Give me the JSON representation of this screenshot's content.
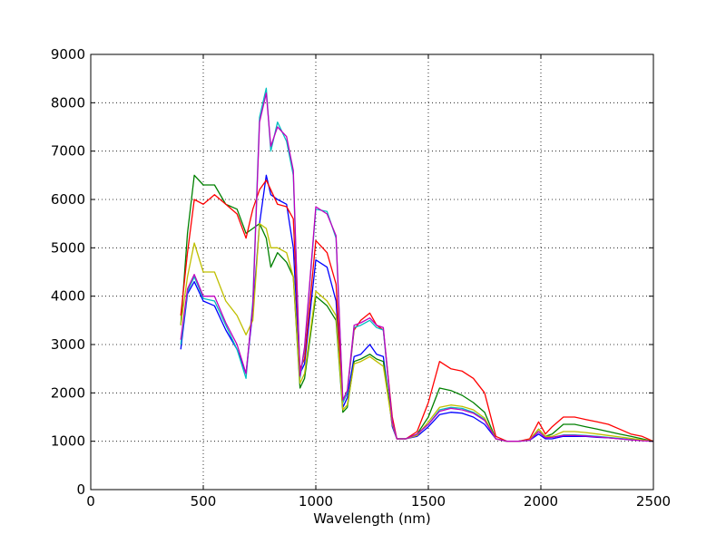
{
  "chart_data": {
    "type": "line",
    "title": "",
    "xlabel": "Wavelength (nm)",
    "ylabel": "",
    "xlim": [
      0,
      2500
    ],
    "ylim": [
      0,
      9000
    ],
    "xticks": [
      "0",
      "500",
      "1000",
      "1500",
      "2000",
      "2500"
    ],
    "yticks": [
      "0",
      "1000",
      "2000",
      "3000",
      "4000",
      "5000",
      "6000",
      "7000",
      "8000",
      "9000"
    ],
    "grid": true,
    "legend": "none",
    "x": [
      400,
      430,
      460,
      500,
      550,
      600,
      650,
      690,
      720,
      750,
      780,
      800,
      830,
      870,
      900,
      930,
      950,
      1000,
      1050,
      1090,
      1120,
      1140,
      1170,
      1200,
      1240,
      1270,
      1300,
      1340,
      1360,
      1400,
      1450,
      1500,
      1550,
      1600,
      1650,
      1700,
      1750,
      1800,
      1850,
      1900,
      1950,
      1990,
      2020,
      2050,
      2100,
      2150,
      2200,
      2250,
      2300,
      2350,
      2400,
      2450,
      2500
    ],
    "series": [
      {
        "color": "#0000ff",
        "values": [
          2900,
          4050,
          4300,
          3900,
          3800,
          3300,
          2900,
          2400,
          3700,
          5500,
          6500,
          6100,
          6000,
          5900,
          5000,
          2400,
          2600,
          4750,
          4600,
          3900,
          1700,
          1900,
          2750,
          2800,
          3000,
          2800,
          2750,
          1300,
          1050,
          1050,
          1100,
          1300,
          1550,
          1600,
          1580,
          1500,
          1350,
          1050,
          1000,
          1000,
          1020,
          1150,
          1050,
          1050,
          1100,
          1100,
          1100,
          1080,
          1070,
          1050,
          1030,
          1020,
          1000
        ]
      },
      {
        "color": "#008000",
        "values": [
          3400,
          5300,
          6500,
          6300,
          6300,
          5900,
          5800,
          5300,
          5400,
          5500,
          5200,
          4600,
          4900,
          4700,
          4400,
          2100,
          2300,
          4000,
          3800,
          3500,
          1600,
          1700,
          2650,
          2700,
          2800,
          2700,
          2650,
          1400,
          1050,
          1050,
          1150,
          1500,
          2100,
          2050,
          1950,
          1800,
          1600,
          1050,
          1000,
          1000,
          1030,
          1250,
          1100,
          1150,
          1350,
          1350,
          1300,
          1250,
          1200,
          1150,
          1100,
          1050,
          1000
        ]
      },
      {
        "color": "#ff0000",
        "values": [
          3600,
          4900,
          6000,
          5900,
          6100,
          5900,
          5700,
          5200,
          5800,
          6200,
          6400,
          6200,
          5900,
          5850,
          5600,
          2500,
          2700,
          5150,
          4900,
          4250,
          1800,
          2000,
          3300,
          3500,
          3650,
          3400,
          3300,
          1500,
          1050,
          1050,
          1200,
          1800,
          2650,
          2500,
          2450,
          2300,
          2000,
          1100,
          1000,
          1000,
          1050,
          1400,
          1150,
          1300,
          1500,
          1500,
          1450,
          1400,
          1350,
          1250,
          1150,
          1100,
          1000
        ]
      },
      {
        "color": "#00bfbf",
        "values": [
          3000,
          4100,
          4400,
          3950,
          3900,
          3400,
          2900,
          2300,
          3900,
          7700,
          8300,
          7000,
          7600,
          7200,
          6500,
          2300,
          2900,
          5800,
          5750,
          5200,
          1800,
          2000,
          3350,
          3400,
          3500,
          3350,
          3300,
          1400,
          1050,
          1050,
          1150,
          1350,
          1650,
          1700,
          1680,
          1600,
          1450,
          1050,
          1000,
          1000,
          1020,
          1200,
          1080,
          1080,
          1130,
          1130,
          1120,
          1100,
          1080,
          1060,
          1040,
          1020,
          1000
        ]
      },
      {
        "color": "#bfbf00",
        "values": [
          3400,
          4400,
          5100,
          4500,
          4500,
          3900,
          3600,
          3200,
          3500,
          5500,
          5400,
          5000,
          5000,
          4900,
          4400,
          2200,
          2400,
          4100,
          3900,
          3600,
          1650,
          1750,
          2600,
          2650,
          2750,
          2650,
          2550,
          1350,
          1050,
          1050,
          1120,
          1400,
          1700,
          1750,
          1720,
          1650,
          1480,
          1050,
          1000,
          1000,
          1030,
          1250,
          1100,
          1100,
          1200,
          1200,
          1180,
          1150,
          1120,
          1090,
          1060,
          1030,
          1000
        ]
      },
      {
        "color": "#bf00bf",
        "values": [
          3100,
          4150,
          4450,
          4000,
          4000,
          3450,
          3000,
          2400,
          3800,
          7600,
          8200,
          7100,
          7500,
          7300,
          6600,
          2350,
          2950,
          5850,
          5700,
          5250,
          1850,
          2050,
          3400,
          3450,
          3550,
          3400,
          3350,
          1400,
          1050,
          1050,
          1150,
          1350,
          1620,
          1680,
          1650,
          1580,
          1430,
          1050,
          1000,
          1000,
          1020,
          1200,
          1070,
          1080,
          1120,
          1120,
          1110,
          1090,
          1070,
          1050,
          1030,
          1010,
          1000
        ]
      }
    ]
  }
}
